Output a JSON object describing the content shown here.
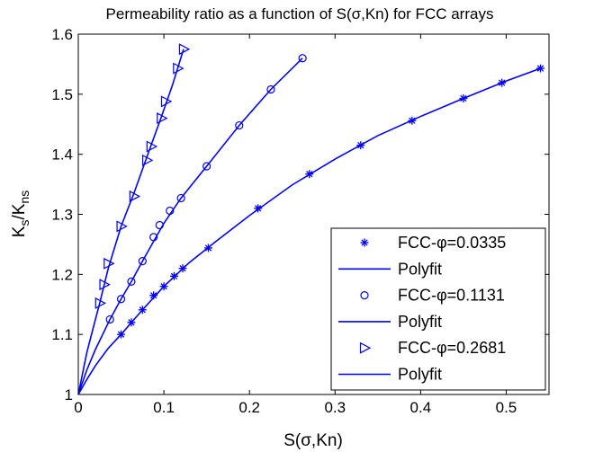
{
  "chart_data": {
    "type": "line",
    "title": "Permeability ratio as a function of S(σ,Kn) for FCC arrays",
    "xlabel": {
      "main": "S(σ,Kn)"
    },
    "ylabel": {
      "main": "K",
      "sub1": "s",
      "sep": "/K",
      "sub2": "ns"
    },
    "xlim": [
      0,
      0.55
    ],
    "ylim": [
      1,
      1.6
    ],
    "xticks": [
      0,
      0.1,
      0.2,
      0.3,
      0.4,
      0.5
    ],
    "xtick_labels": [
      "0",
      "0.1",
      "0.2",
      "0.3",
      "0.4",
      "0.5"
    ],
    "yticks": [
      1,
      1.1,
      1.2,
      1.3,
      1.4,
      1.5,
      1.6
    ],
    "ytick_labels": [
      "1",
      "1.1",
      "1.2",
      "1.3",
      "1.4",
      "1.5",
      "1.6"
    ],
    "grid": false,
    "legend_position": "bottom-right",
    "color": "#0000ff",
    "series": [
      {
        "name": "FCC-φ=0.0335",
        "marker": "star",
        "x": [
          0.05,
          0.062,
          0.075,
          0.088,
          0.1,
          0.112,
          0.122,
          0.152,
          0.21,
          0.27,
          0.33,
          0.39,
          0.45,
          0.495,
          0.54
        ],
        "y": [
          1.1,
          1.12,
          1.141,
          1.165,
          1.18,
          1.197,
          1.21,
          1.244,
          1.31,
          1.367,
          1.415,
          1.456,
          1.493,
          1.519,
          1.543
        ]
      },
      {
        "name": "Polyfit",
        "marker": "none",
        "x": [
          0,
          0.01,
          0.02,
          0.035,
          0.05,
          0.075,
          0.1,
          0.13,
          0.16,
          0.2,
          0.25,
          0.3,
          0.35,
          0.4,
          0.45,
          0.5,
          0.54
        ],
        "y": [
          1.0,
          1.025,
          1.048,
          1.077,
          1.1,
          1.141,
          1.18,
          1.22,
          1.254,
          1.298,
          1.349,
          1.392,
          1.431,
          1.463,
          1.493,
          1.522,
          1.543
        ]
      },
      {
        "name": "FCC-φ=0.1131",
        "marker": "circle",
        "x": [
          0.037,
          0.05,
          0.062,
          0.075,
          0.088,
          0.095,
          0.107,
          0.12,
          0.15,
          0.188,
          0.225,
          0.262
        ],
        "y": [
          1.125,
          1.159,
          1.188,
          1.222,
          1.262,
          1.282,
          1.306,
          1.327,
          1.38,
          1.448,
          1.508,
          1.56
        ]
      },
      {
        "name": "Polyfit",
        "marker": "none",
        "x": [
          0,
          0.01,
          0.02,
          0.037,
          0.05,
          0.062,
          0.075,
          0.088,
          0.1,
          0.12,
          0.15,
          0.188,
          0.225,
          0.262
        ],
        "y": [
          1.0,
          1.041,
          1.075,
          1.125,
          1.159,
          1.188,
          1.222,
          1.255,
          1.285,
          1.327,
          1.38,
          1.448,
          1.508,
          1.56
        ]
      },
      {
        "name": "FCC-φ=0.2681",
        "marker": "triangle-right",
        "x": [
          0.025,
          0.03,
          0.035,
          0.05,
          0.065,
          0.08,
          0.085,
          0.097,
          0.102,
          0.116,
          0.123
        ],
        "y": [
          1.152,
          1.183,
          1.218,
          1.28,
          1.33,
          1.39,
          1.413,
          1.46,
          1.488,
          1.543,
          1.575
        ]
      },
      {
        "name": "Polyfit",
        "marker": "none",
        "x": [
          0,
          0.01,
          0.02,
          0.025,
          0.035,
          0.05,
          0.065,
          0.08,
          0.097,
          0.11,
          0.123
        ],
        "y": [
          1.0,
          1.07,
          1.125,
          1.152,
          1.21,
          1.28,
          1.335,
          1.395,
          1.462,
          1.515,
          1.575
        ]
      }
    ]
  }
}
